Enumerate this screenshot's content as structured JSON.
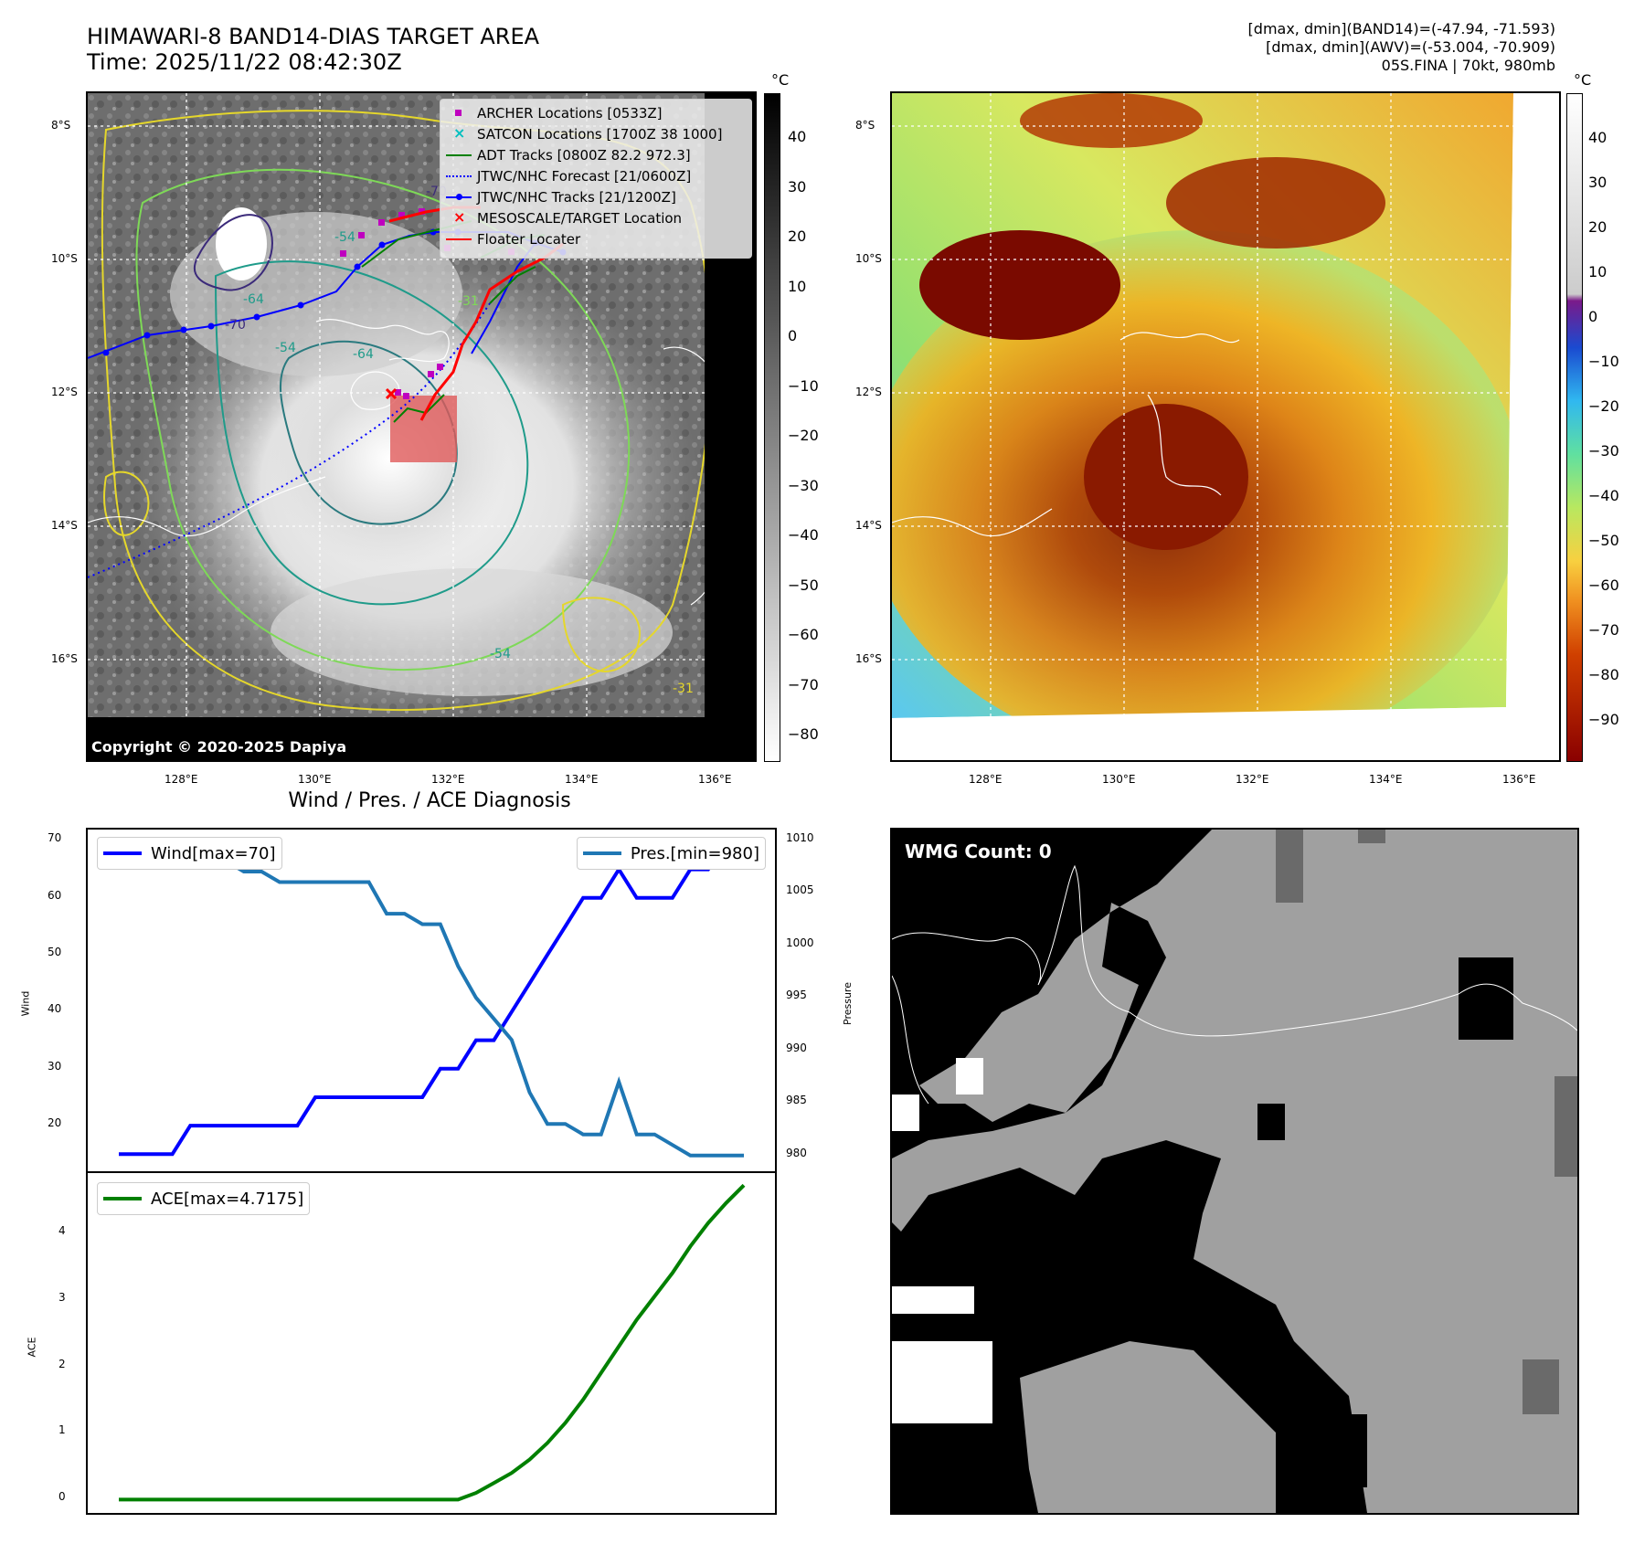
{
  "header": {
    "title_line1": "HIMAWARI-8 BAND14-DIAS TARGET AREA",
    "title_line2": "Time: 2025/11/22 08:42:30Z",
    "stats_line1": "[dmax, dmin](BAND14)=(-47.94, -71.593)",
    "stats_line2": "[dmax, dmin](AWV)=(-53.004, -70.909)",
    "stats_line3": "05S.FINA | 70kt, 980mb"
  },
  "map_axes": {
    "lat_labels": [
      "8°S",
      "10°S",
      "12°S",
      "14°S",
      "16°S"
    ],
    "lon_labels": [
      "128°E",
      "130°E",
      "132°E",
      "134°E",
      "136°E"
    ]
  },
  "top_left": {
    "copyright": "Copyright © 2020-2025 Dapiya",
    "colorbar_unit": "°C",
    "colorbar_ticks": [
      "40",
      "30",
      "20",
      "10",
      "0",
      "−10",
      "−20",
      "−30",
      "−40",
      "−50",
      "−60",
      "−70",
      "−80"
    ],
    "contour_labels": [
      "-54",
      "-64",
      "-70",
      "-54",
      "-64",
      "-31",
      "-54",
      "-31",
      "-70"
    ],
    "legend": [
      {
        "label": "ARCHER Locations [0533Z]",
        "color": "#bf00bf",
        "kind": "square"
      },
      {
        "label": "SATCON Locations [1700Z 38 1000]",
        "color": "#00bfbf",
        "kind": "x"
      },
      {
        "label": "ADT Tracks [0800Z 82.2 972.3]",
        "color": "#008000",
        "kind": "line"
      },
      {
        "label": "JTWC/NHC Forecast [21/0600Z]",
        "color": "#0000ff",
        "kind": "dotted"
      },
      {
        "label": "JTWC/NHC Tracks [21/1200Z]",
        "color": "#0000ff",
        "kind": "line-dot"
      },
      {
        "label": "MESOSCALE/TARGET Location",
        "color": "#ff0000",
        "kind": "x"
      },
      {
        "label": "Floater Locater",
        "color": "#ff0000",
        "kind": "line"
      }
    ]
  },
  "top_right": {
    "colorbar_unit": "°C",
    "colorbar_ticks": [
      "40",
      "30",
      "20",
      "10",
      "0",
      "−10",
      "−20",
      "−30",
      "−40",
      "−50",
      "−60",
      "−70",
      "−80",
      "−90"
    ]
  },
  "bottom_right": {
    "label": "WMG Count: 0"
  },
  "chart_data": [
    {
      "type": "line",
      "title": "Wind / Pres. / ACE Diagnosis",
      "ylabel": "Wind",
      "ylabel_right": "Pressure",
      "x": [
        0,
        1,
        2,
        3,
        4,
        5,
        6,
        7,
        8,
        9,
        10,
        11,
        12,
        13,
        14,
        15,
        16,
        17,
        18,
        19,
        20,
        21,
        22,
        23,
        24,
        25,
        26,
        27,
        28,
        29,
        30,
        31,
        32,
        33,
        34,
        35
      ],
      "series": [
        {
          "name": "Wind",
          "legend": "Wind[max=70]",
          "axis": "left",
          "color": "#0000ff",
          "values": [
            15,
            15,
            15,
            15,
            20,
            20,
            20,
            20,
            20,
            20,
            20,
            25,
            25,
            25,
            25,
            25,
            25,
            25,
            30,
            30,
            35,
            35,
            40,
            45,
            50,
            55,
            60,
            60,
            65,
            60,
            60,
            60,
            65,
            65,
            70,
            70
          ]
        },
        {
          "name": "Pressure",
          "legend": "Pres.[min=980]",
          "axis": "right",
          "color": "#1f77b4",
          "values": [
            1009,
            1009,
            1009,
            1009,
            1009,
            1009,
            1008,
            1007,
            1007,
            1006,
            1006,
            1006,
            1006,
            1006,
            1006,
            1003,
            1003,
            1002,
            1002,
            998,
            995,
            993,
            991,
            986,
            983,
            983,
            982,
            982,
            987,
            982,
            982,
            981,
            980,
            980,
            980,
            980
          ]
        }
      ],
      "ylim": [
        12,
        72
      ],
      "ylim_right": [
        978.5,
        1011
      ],
      "yticks": [
        "20",
        "30",
        "40",
        "50",
        "60",
        "70"
      ],
      "yticks_right": [
        "980",
        "985",
        "990",
        "995",
        "1000",
        "1005",
        "1010"
      ]
    },
    {
      "type": "line",
      "ylabel": "ACE",
      "x": [
        0,
        1,
        2,
        3,
        4,
        5,
        6,
        7,
        8,
        9,
        10,
        11,
        12,
        13,
        14,
        15,
        16,
        17,
        18,
        19,
        20,
        21,
        22,
        23,
        24,
        25,
        26,
        27,
        28,
        29,
        30,
        31,
        32,
        33,
        34,
        35
      ],
      "series": [
        {
          "name": "ACE",
          "legend": "ACE[max=4.7175]",
          "color": "#008000",
          "values": [
            0,
            0,
            0,
            0,
            0,
            0,
            0,
            0,
            0,
            0,
            0,
            0,
            0,
            0,
            0,
            0,
            0,
            0,
            0,
            0,
            0.1,
            0.25,
            0.4,
            0.6,
            0.85,
            1.15,
            1.5,
            1.9,
            2.3,
            2.7,
            3.05,
            3.4,
            3.8,
            4.15,
            4.45,
            4.7175
          ]
        }
      ],
      "ylim": [
        -0.2,
        4.9
      ],
      "yticks": [
        "0",
        "1",
        "2",
        "3",
        "4"
      ]
    }
  ]
}
